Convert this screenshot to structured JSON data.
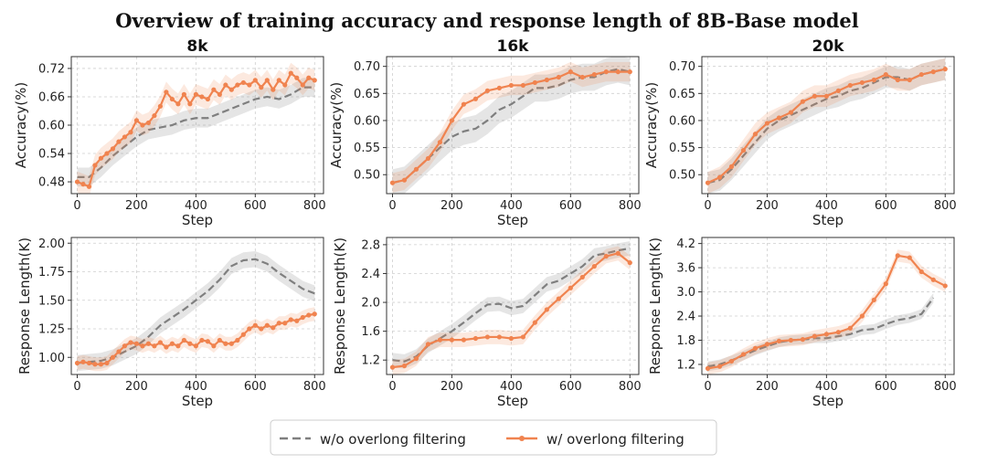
{
  "figure": {
    "title": "Overview of training accuracy and response length of 8B-Base model",
    "legend": [
      {
        "label": "w/o overlong filtering",
        "color": "#7f7f7f",
        "style": "dashed"
      },
      {
        "label": "w/ overlong filtering",
        "color": "#f0834f",
        "style": "solid-marker"
      }
    ]
  },
  "chart_data": [
    {
      "type": "line",
      "title": "8k",
      "xlabel": "Step",
      "ylabel": "Accuracy(%)",
      "xlim": [
        -20,
        830
      ],
      "ylim": [
        0.455,
        0.745
      ],
      "xticks": [
        0,
        200,
        400,
        600,
        800
      ],
      "yticks": [
        0.48,
        0.54,
        0.6,
        0.66,
        0.72
      ],
      "ytick_labels": [
        "0.48",
        "0.54",
        "0.60",
        "0.66",
        "0.72"
      ],
      "series": [
        {
          "name": "w/o overlong filtering",
          "color": "#7f7f7f",
          "band": 0.02,
          "x": [
            0,
            40,
            80,
            120,
            160,
            200,
            240,
            280,
            320,
            360,
            400,
            440,
            480,
            520,
            560,
            600,
            640,
            680,
            720,
            760,
            800
          ],
          "y": [
            0.49,
            0.49,
            0.51,
            0.535,
            0.555,
            0.575,
            0.59,
            0.595,
            0.6,
            0.61,
            0.615,
            0.615,
            0.625,
            0.635,
            0.645,
            0.655,
            0.66,
            0.655,
            0.665,
            0.68,
            0.68
          ]
        },
        {
          "name": "w/ overlong filtering",
          "color": "#f0834f",
          "band": 0.022,
          "markers": true,
          "x": [
            0,
            20,
            40,
            60,
            80,
            100,
            120,
            140,
            160,
            180,
            200,
            220,
            240,
            260,
            280,
            300,
            320,
            340,
            360,
            380,
            400,
            420,
            440,
            460,
            480,
            500,
            520,
            540,
            560,
            580,
            600,
            620,
            640,
            660,
            680,
            700,
            720,
            740,
            760,
            780,
            800
          ],
          "y": [
            0.48,
            0.475,
            0.47,
            0.515,
            0.53,
            0.54,
            0.55,
            0.565,
            0.575,
            0.585,
            0.61,
            0.6,
            0.605,
            0.62,
            0.64,
            0.67,
            0.655,
            0.645,
            0.665,
            0.645,
            0.665,
            0.66,
            0.655,
            0.675,
            0.665,
            0.685,
            0.675,
            0.685,
            0.69,
            0.685,
            0.695,
            0.68,
            0.695,
            0.675,
            0.695,
            0.685,
            0.71,
            0.7,
            0.685,
            0.7,
            0.695
          ]
        }
      ]
    },
    {
      "type": "line",
      "title": "16k",
      "xlabel": "Step",
      "ylabel": "Accuracy(%)",
      "xlim": [
        -20,
        830
      ],
      "ylim": [
        0.465,
        0.718
      ],
      "xticks": [
        0,
        200,
        400,
        600,
        800
      ],
      "yticks": [
        0.5,
        0.55,
        0.6,
        0.65,
        0.7
      ],
      "ytick_labels": [
        "0.50",
        "0.55",
        "0.60",
        "0.65",
        "0.70"
      ],
      "series": [
        {
          "name": "w/o overlong filtering",
          "color": "#7f7f7f",
          "band": 0.025,
          "x": [
            0,
            40,
            80,
            120,
            160,
            200,
            240,
            280,
            320,
            360,
            400,
            440,
            480,
            520,
            560,
            600,
            640,
            680,
            720,
            760,
            800
          ],
          "y": [
            0.485,
            0.49,
            0.51,
            0.53,
            0.55,
            0.57,
            0.58,
            0.585,
            0.6,
            0.62,
            0.63,
            0.645,
            0.66,
            0.66,
            0.665,
            0.675,
            0.68,
            0.68,
            0.69,
            0.695,
            0.69
          ]
        },
        {
          "name": "w/ overlong filtering",
          "color": "#f0834f",
          "band": 0.018,
          "markers": true,
          "x": [
            0,
            40,
            80,
            120,
            160,
            200,
            240,
            280,
            320,
            360,
            400,
            440,
            480,
            520,
            560,
            600,
            640,
            680,
            720,
            760,
            800
          ],
          "y": [
            0.485,
            0.49,
            0.51,
            0.53,
            0.56,
            0.6,
            0.63,
            0.64,
            0.655,
            0.66,
            0.665,
            0.665,
            0.67,
            0.675,
            0.68,
            0.69,
            0.68,
            0.685,
            0.69,
            0.69,
            0.69
          ]
        }
      ]
    },
    {
      "type": "line",
      "title": "20k",
      "xlabel": "Step",
      "ylabel": "Accuracy(%)",
      "xlim": [
        -20,
        830
      ],
      "ylim": [
        0.465,
        0.718
      ],
      "xticks": [
        0,
        200,
        400,
        600,
        800
      ],
      "yticks": [
        0.5,
        0.55,
        0.6,
        0.65,
        0.7
      ],
      "ytick_labels": [
        "0.50",
        "0.55",
        "0.60",
        "0.65",
        "0.70"
      ],
      "series": [
        {
          "name": "w/o overlong filtering",
          "color": "#7f7f7f",
          "band": 0.02,
          "x": [
            0,
            40,
            80,
            120,
            160,
            200,
            240,
            280,
            320,
            360,
            400,
            440,
            480,
            520,
            560,
            600,
            640,
            680,
            720,
            760,
            800
          ],
          "y": [
            0.485,
            0.49,
            0.51,
            0.535,
            0.56,
            0.585,
            0.6,
            0.61,
            0.62,
            0.63,
            0.64,
            0.645,
            0.655,
            0.66,
            0.67,
            0.68,
            0.68,
            0.675,
            0.685,
            0.69,
            0.695
          ]
        },
        {
          "name": "w/ overlong filtering",
          "color": "#f0834f",
          "band": 0.02,
          "markers": true,
          "x": [
            0,
            40,
            80,
            120,
            160,
            200,
            240,
            280,
            320,
            360,
            400,
            440,
            480,
            520,
            560,
            600,
            640,
            680,
            720,
            760,
            800
          ],
          "y": [
            0.485,
            0.495,
            0.515,
            0.545,
            0.575,
            0.595,
            0.605,
            0.615,
            0.635,
            0.645,
            0.645,
            0.655,
            0.665,
            0.67,
            0.675,
            0.685,
            0.675,
            0.675,
            0.685,
            0.69,
            0.695
          ]
        }
      ]
    },
    {
      "type": "line",
      "title": "",
      "xlabel": "Step",
      "ylabel": "Response Length(K)",
      "xlim": [
        -20,
        830
      ],
      "ylim": [
        0.85,
        2.05
      ],
      "xticks": [
        0,
        200,
        400,
        600,
        800
      ],
      "yticks": [
        1.0,
        1.25,
        1.5,
        1.75,
        2.0
      ],
      "ytick_labels": [
        "1.00",
        "1.25",
        "1.50",
        "1.75",
        "2.00"
      ],
      "series": [
        {
          "name": "w/o overlong filtering",
          "color": "#7f7f7f",
          "band": 0.07,
          "x": [
            0,
            40,
            80,
            120,
            160,
            200,
            240,
            280,
            320,
            360,
            400,
            440,
            480,
            520,
            560,
            600,
            640,
            680,
            720,
            760,
            800
          ],
          "y": [
            0.95,
            0.96,
            0.97,
            1.0,
            1.05,
            1.1,
            1.18,
            1.28,
            1.35,
            1.42,
            1.5,
            1.58,
            1.68,
            1.8,
            1.85,
            1.86,
            1.82,
            1.74,
            1.67,
            1.6,
            1.56
          ]
        },
        {
          "name": "w/ overlong filtering",
          "color": "#f0834f",
          "band": 0.06,
          "markers": true,
          "x": [
            0,
            20,
            40,
            60,
            80,
            100,
            120,
            140,
            160,
            180,
            200,
            220,
            240,
            260,
            280,
            300,
            320,
            340,
            360,
            380,
            400,
            420,
            440,
            460,
            480,
            500,
            520,
            540,
            560,
            580,
            600,
            620,
            640,
            660,
            680,
            700,
            720,
            740,
            760,
            780,
            800
          ],
          "y": [
            0.95,
            0.96,
            0.95,
            0.94,
            0.94,
            0.95,
            1.0,
            1.05,
            1.1,
            1.13,
            1.12,
            1.1,
            1.12,
            1.1,
            1.13,
            1.09,
            1.12,
            1.1,
            1.15,
            1.12,
            1.1,
            1.15,
            1.14,
            1.1,
            1.15,
            1.12,
            1.12,
            1.15,
            1.2,
            1.25,
            1.28,
            1.25,
            1.28,
            1.26,
            1.3,
            1.3,
            1.33,
            1.32,
            1.35,
            1.37,
            1.38
          ]
        }
      ]
    },
    {
      "type": "line",
      "title": "",
      "xlabel": "Step",
      "ylabel": "Response Length(K)",
      "xlim": [
        -20,
        830
      ],
      "ylim": [
        1.0,
        2.9
      ],
      "xticks": [
        0,
        200,
        400,
        600,
        800
      ],
      "yticks": [
        1.2,
        1.6,
        2.0,
        2.4,
        2.8
      ],
      "ytick_labels": [
        "1.2",
        "1.6",
        "2.0",
        "2.4",
        "2.8"
      ],
      "series": [
        {
          "name": "w/o overlong filtering",
          "color": "#7f7f7f",
          "band": 0.1,
          "x": [
            0,
            40,
            80,
            120,
            160,
            200,
            240,
            280,
            320,
            360,
            400,
            440,
            480,
            520,
            560,
            600,
            640,
            680,
            720,
            760,
            800
          ],
          "y": [
            1.2,
            1.18,
            1.25,
            1.4,
            1.5,
            1.6,
            1.72,
            1.85,
            1.97,
            1.98,
            1.92,
            1.95,
            2.1,
            2.25,
            2.3,
            2.4,
            2.5,
            2.65,
            2.68,
            2.72,
            2.75
          ]
        },
        {
          "name": "w/ overlong filtering",
          "color": "#f0834f",
          "band": 0.1,
          "markers": true,
          "x": [
            0,
            40,
            80,
            120,
            160,
            200,
            240,
            280,
            320,
            360,
            400,
            440,
            480,
            520,
            560,
            600,
            640,
            680,
            720,
            760,
            800
          ],
          "y": [
            1.1,
            1.12,
            1.22,
            1.42,
            1.48,
            1.48,
            1.48,
            1.5,
            1.52,
            1.52,
            1.5,
            1.52,
            1.72,
            1.9,
            2.05,
            2.2,
            2.35,
            2.5,
            2.64,
            2.68,
            2.55
          ]
        }
      ]
    },
    {
      "type": "line",
      "title": "",
      "xlabel": "Step",
      "ylabel": "Response Length(K)",
      "xlim": [
        -20,
        830
      ],
      "ylim": [
        0.95,
        4.35
      ],
      "xticks": [
        0,
        200,
        400,
        600,
        800
      ],
      "yticks": [
        1.2,
        1.8,
        2.4,
        3.0,
        3.6,
        4.2
      ],
      "ytick_labels": [
        "1.2",
        "1.8",
        "2.4",
        "3.0",
        "3.6",
        "4.2"
      ],
      "series": [
        {
          "name": "w/o overlong filtering",
          "color": "#7f7f7f",
          "band": 0.12,
          "x": [
            0,
            40,
            80,
            120,
            160,
            200,
            240,
            280,
            320,
            360,
            400,
            440,
            480,
            520,
            560,
            600,
            640,
            680,
            720,
            760
          ],
          "y": [
            1.15,
            1.2,
            1.3,
            1.42,
            1.55,
            1.65,
            1.75,
            1.8,
            1.82,
            1.85,
            1.85,
            1.9,
            1.95,
            2.05,
            2.08,
            2.2,
            2.3,
            2.35,
            2.45,
            2.85
          ]
        },
        {
          "name": "w/ overlong filtering",
          "color": "#f0834f",
          "band": 0.15,
          "markers": true,
          "x": [
            0,
            40,
            80,
            120,
            160,
            200,
            240,
            280,
            320,
            360,
            400,
            440,
            480,
            520,
            560,
            600,
            640,
            680,
            720,
            760,
            800
          ],
          "y": [
            1.1,
            1.15,
            1.28,
            1.45,
            1.6,
            1.7,
            1.78,
            1.8,
            1.82,
            1.9,
            1.95,
            2.0,
            2.1,
            2.4,
            2.8,
            3.2,
            3.9,
            3.85,
            3.5,
            3.3,
            3.15
          ]
        }
      ]
    }
  ]
}
